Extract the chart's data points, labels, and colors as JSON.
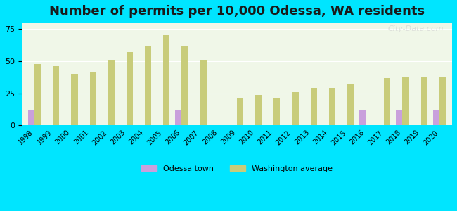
{
  "title": "Number of permits per 10,000 Odessa, WA residents",
  "years": [
    1998,
    1999,
    2000,
    2001,
    2002,
    2003,
    2004,
    2005,
    2006,
    2007,
    2008,
    2009,
    2010,
    2011,
    2012,
    2013,
    2014,
    2015,
    2016,
    2017,
    2018,
    2019,
    2020
  ],
  "odessa_values": [
    12,
    0,
    0,
    0,
    0,
    0,
    0,
    0,
    12,
    0,
    0,
    0,
    0,
    0,
    0,
    0,
    0,
    0,
    12,
    0,
    12,
    0,
    12
  ],
  "wa_values": [
    48,
    46,
    40,
    42,
    51,
    57,
    62,
    70,
    62,
    51,
    0,
    21,
    24,
    21,
    26,
    29,
    29,
    32,
    0,
    37,
    38,
    38,
    38
  ],
  "odessa_color": "#c9a0dc",
  "wa_color": "#c8cc7a",
  "bg_color_outer": "#00e5ff",
  "bg_color_plot": "#f0f7e8",
  "ylim": [
    0,
    80
  ],
  "yticks": [
    0,
    25,
    50,
    75
  ],
  "bar_width": 0.35,
  "title_fontsize": 13,
  "legend_labels": [
    "Odessa town",
    "Washington average"
  ],
  "watermark": "City-Data.com"
}
